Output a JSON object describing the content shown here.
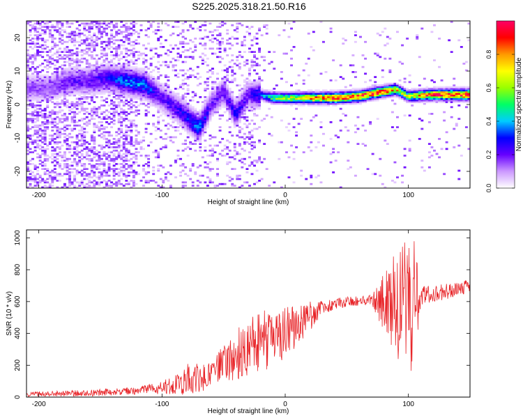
{
  "title": "S225.2025.318.21.50.R16",
  "chart_data": [
    {
      "type": "heatmap",
      "name": "spectrogram",
      "xlabel": "Height of straight line (km)",
      "ylabel": "Frequency (Hz)",
      "xlim": [
        -210,
        150
      ],
      "ylim": [
        -25,
        25
      ],
      "xticks": [
        -200,
        -100,
        0,
        100
      ],
      "yticks": [
        -20,
        -10,
        0,
        10,
        20
      ],
      "colorbar": {
        "label": "Normalized spectral amplitude",
        "range": [
          0,
          1
        ],
        "ticks": [
          0.0,
          0.2,
          0.4,
          0.6,
          0.8
        ],
        "colors": [
          "#ffffff",
          "#cc99ff",
          "#6600ff",
          "#0000ff",
          "#00ccff",
          "#00ff66",
          "#99ff00",
          "#ffff00",
          "#ff9900",
          "#ff0000",
          "#ff0066"
        ]
      },
      "ridge": [
        {
          "x": -190,
          "f": 5,
          "a": 0.15
        },
        {
          "x": -175,
          "f": 7,
          "a": 0.2
        },
        {
          "x": -160,
          "f": 7,
          "a": 0.2
        },
        {
          "x": -145,
          "f": 8,
          "a": 0.25
        },
        {
          "x": -130,
          "f": 7,
          "a": 0.35
        },
        {
          "x": -115,
          "f": 6,
          "a": 0.35
        },
        {
          "x": -100,
          "f": 2,
          "a": 0.2
        },
        {
          "x": -85,
          "f": -2,
          "a": 0.25
        },
        {
          "x": -70,
          "f": -7,
          "a": 0.35
        },
        {
          "x": -60,
          "f": 0,
          "a": 0.2
        },
        {
          "x": -50,
          "f": 4,
          "a": 0.2
        },
        {
          "x": -40,
          "f": -3,
          "a": 0.25
        },
        {
          "x": -30,
          "f": 3,
          "a": 0.2
        },
        {
          "x": -20,
          "f": 3,
          "a": 0.3
        },
        {
          "x": -10,
          "f": 2,
          "a": 0.5
        },
        {
          "x": 0,
          "f": 2,
          "a": 0.6
        },
        {
          "x": 20,
          "f": 2,
          "a": 0.75
        },
        {
          "x": 40,
          "f": 2,
          "a": 0.9
        },
        {
          "x": 60,
          "f": 2.5,
          "a": 0.9
        },
        {
          "x": 80,
          "f": 4,
          "a": 0.85
        },
        {
          "x": 90,
          "f": 4.5,
          "a": 0.7
        },
        {
          "x": 100,
          "f": 2.5,
          "a": 0.6
        },
        {
          "x": 120,
          "f": 3,
          "a": 0.9
        },
        {
          "x": 150,
          "f": 3,
          "a": 0.95
        }
      ]
    },
    {
      "type": "line",
      "name": "snr",
      "xlabel": "Height of straight line (km)",
      "ylabel": "SNR (10 * v/v)",
      "xlim": [
        -210,
        150
      ],
      "ylim": [
        0,
        1050
      ],
      "xticks": [
        -200,
        -100,
        0,
        100
      ],
      "yticks": [
        0,
        200,
        400,
        600,
        800,
        1000
      ],
      "color": "#e8262a",
      "series": [
        {
          "x": -210,
          "y": 20,
          "noise": 15
        },
        {
          "x": -160,
          "y": 25,
          "noise": 20
        },
        {
          "x": -120,
          "y": 40,
          "noise": 25
        },
        {
          "x": -100,
          "y": 60,
          "noise": 40
        },
        {
          "x": -80,
          "y": 110,
          "noise": 100
        },
        {
          "x": -60,
          "y": 130,
          "noise": 80
        },
        {
          "x": -45,
          "y": 250,
          "noise": 150
        },
        {
          "x": -30,
          "y": 300,
          "noise": 180
        },
        {
          "x": -20,
          "y": 340,
          "noise": 220
        },
        {
          "x": -10,
          "y": 380,
          "noise": 170
        },
        {
          "x": 0,
          "y": 400,
          "noise": 160
        },
        {
          "x": 15,
          "y": 480,
          "noise": 120
        },
        {
          "x": 30,
          "y": 560,
          "noise": 50
        },
        {
          "x": 50,
          "y": 600,
          "noise": 30
        },
        {
          "x": 70,
          "y": 610,
          "noise": 30
        },
        {
          "x": 80,
          "y": 600,
          "noise": 200
        },
        {
          "x": 95,
          "y": 590,
          "noise": 400
        },
        {
          "x": 105,
          "y": 600,
          "noise": 450
        },
        {
          "x": 110,
          "y": 640,
          "noise": 60
        },
        {
          "x": 130,
          "y": 660,
          "noise": 50
        },
        {
          "x": 150,
          "y": 700,
          "noise": 40
        }
      ]
    }
  ]
}
